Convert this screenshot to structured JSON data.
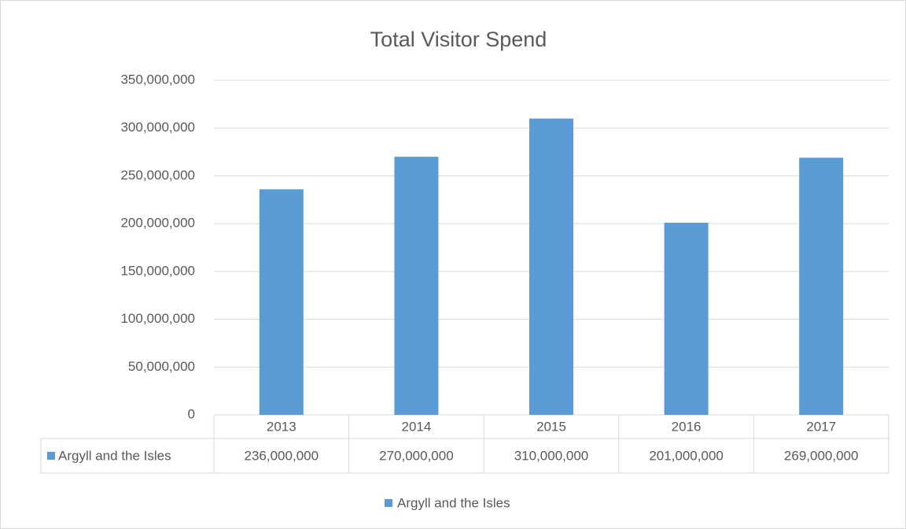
{
  "chart_data": {
    "type": "bar",
    "title": "Total Visitor Spend",
    "categories": [
      "2013",
      "2014",
      "2015",
      "2016",
      "2017"
    ],
    "series": [
      {
        "name": "Argyll and the Isles",
        "color": "#5b9bd5",
        "values": [
          236000000,
          270000000,
          310000000,
          201000000,
          269000000
        ],
        "value_labels": [
          "236,000,000",
          "270,000,000",
          "310,000,000",
          "201,000,000",
          "269,000,000"
        ]
      }
    ],
    "ylim": [
      0,
      350000000
    ],
    "yticks": [
      0,
      {
        "value": 50000000,
        "label": "50,000,000"
      },
      {
        "value": 100000000,
        "label": "100,000,000"
      },
      {
        "value": 150000000,
        "label": "150,000,000"
      },
      {
        "value": 200000000,
        "label": "200,000,000"
      },
      {
        "value": 250000000,
        "label": "250,000,000"
      },
      {
        "value": 300000000,
        "label": "300,000,000"
      },
      {
        "value": 350000000,
        "label": "350,000,000"
      }
    ],
    "grid": true,
    "legend": "bottom"
  }
}
